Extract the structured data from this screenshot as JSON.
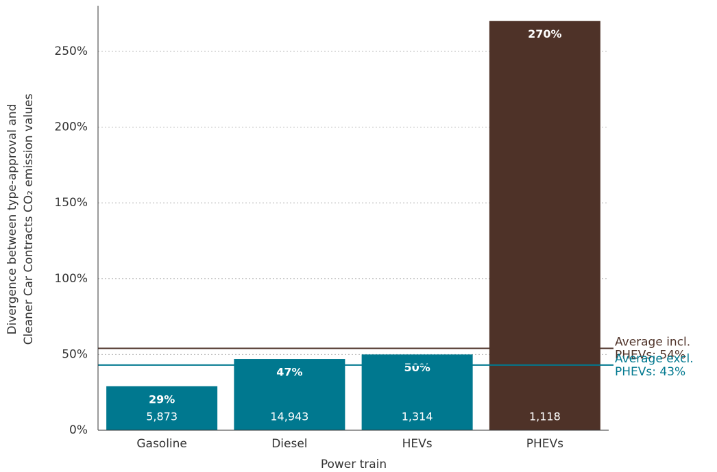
{
  "chart_data": {
    "type": "bar",
    "y_label_lines": [
      "Divergence between type-approval and",
      "Cleaner Car Contracts CO₂ emission values"
    ],
    "x_label": "Power train",
    "categories": [
      "Gasoline",
      "Diesel",
      "HEVs",
      "PHEVs"
    ],
    "values": [
      29,
      47,
      50,
      270
    ],
    "value_labels": [
      "29%",
      "47%",
      "50%",
      "270%"
    ],
    "sample_sizes": [
      "5,873",
      "14,943",
      "1,314",
      "1,118"
    ],
    "colors": [
      "#00788f",
      "#00788f",
      "#00788f",
      "#4e3228"
    ],
    "ylim": [
      0,
      280
    ],
    "yticks": [
      {
        "value": 0,
        "label": "0%"
      },
      {
        "value": 50,
        "label": "50%"
      },
      {
        "value": 100,
        "label": "100%"
      },
      {
        "value": 150,
        "label": "150%"
      },
      {
        "value": 200,
        "label": "200%"
      },
      {
        "value": 250,
        "label": "250%"
      }
    ],
    "grid": true,
    "reference_lines": [
      {
        "value": 54,
        "label_lines": [
          "Average incl.",
          "PHEVs: 54%"
        ],
        "color": "#4e3228"
      },
      {
        "value": 43,
        "label_lines": [
          "Average excl.",
          "PHEVs: 43%"
        ],
        "color": "#00788f"
      }
    ]
  }
}
